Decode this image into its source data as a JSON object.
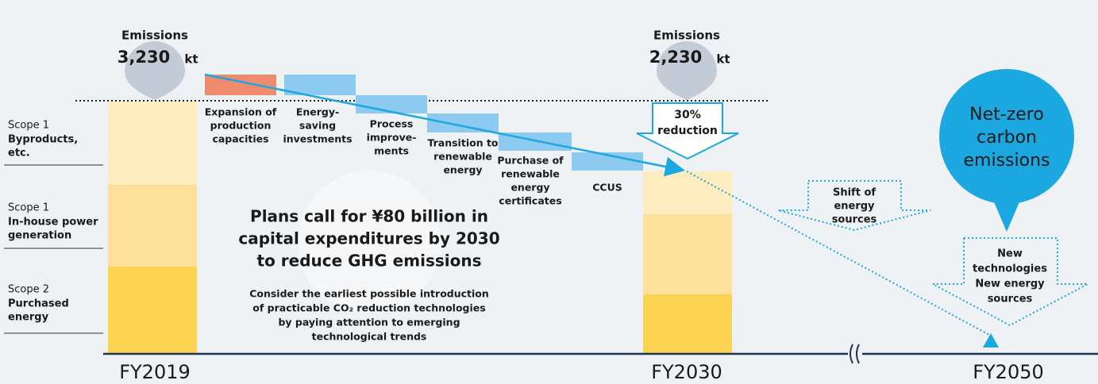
{
  "scopes": [
    {
      "scope": "Scope 1",
      "name": [
        "Byproducts,",
        "etc."
      ]
    },
    {
      "scope": "Scope 1",
      "name": [
        "In-house power",
        "generation"
      ]
    },
    {
      "scope": "Scope 2",
      "name": [
        "Purchased",
        "energy"
      ]
    }
  ],
  "fy2019": {
    "year": "FY2019",
    "heading": "Emissions",
    "amount": "3,230",
    "unit": "kt"
  },
  "fy2030": {
    "year": "FY2030",
    "heading": "Emissions",
    "amount": "2,230",
    "unit": "kt"
  },
  "fy2050": {
    "year": "FY2050"
  },
  "measures": [
    {
      "label": [
        "Expansion of",
        "production",
        "capacities"
      ]
    },
    {
      "label": [
        "Energy-",
        "saving",
        "investments"
      ]
    },
    {
      "label": [
        "Process",
        "improve-",
        "ments"
      ]
    },
    {
      "label": [
        "Transition to",
        "renewable",
        "energy"
      ]
    },
    {
      "label": [
        "Purchase of",
        "renewable",
        "energy",
        "certificates"
      ]
    },
    {
      "label": [
        "CCUS"
      ]
    }
  ],
  "reduction": [
    "30%",
    "reduction"
  ],
  "shift": [
    "Shift of",
    "energy",
    "sources"
  ],
  "new_tech": [
    "New",
    "technologies",
    "New energy",
    "sources"
  ],
  "net_zero": [
    "Net-zero",
    "carbon",
    "emissions"
  ],
  "headline": [
    "Plans call for ¥80 billion in",
    "capital expenditures by 2030",
    "to reduce GHG emissions"
  ],
  "note": [
    "Consider the earliest possible introduction",
    "of practicable CO₂ reduction technologies",
    "by paying attention to emerging",
    "technological trends"
  ]
}
